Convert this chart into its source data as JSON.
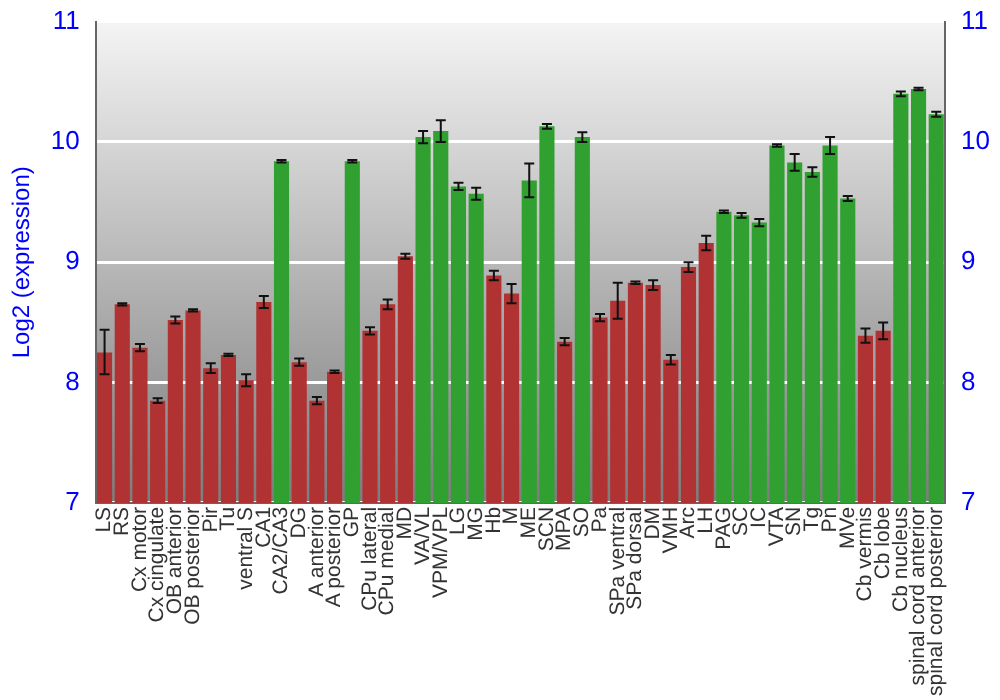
{
  "chart_data": {
    "type": "bar",
    "ylabel": "Log2 (expression)",
    "categories": [
      "LS",
      "RS",
      "Cx motor",
      "Cx cingulate",
      "OB anterior",
      "OB posterior",
      "Pir",
      "Tu",
      "ventral S",
      "CA1",
      "CA2/CA3",
      "DG",
      "A anterior",
      "A posterior",
      "GP",
      "CPu lateral",
      "CPu medial",
      "MD",
      "VA/VL",
      "VPM/VPL",
      "LG",
      "MG",
      "Hb",
      "M",
      "ME",
      "SCN",
      "MPA",
      "SO",
      "Pa",
      "SPa ventral",
      "SPa dorsal",
      "DM",
      "VMH",
      "Arc",
      "LH",
      "PAG",
      "SC",
      "IC",
      "VTA",
      "SN",
      "Tg",
      "Pn",
      "MVe",
      "Cb vermis",
      "Cb lobe",
      "Cb nucleus",
      "spinal cord anterior",
      "spinal cord posterior"
    ],
    "values": [
      8.25,
      8.65,
      8.29,
      7.85,
      8.52,
      8.6,
      8.12,
      8.23,
      8.02,
      8.67,
      9.84,
      8.17,
      7.85,
      8.09,
      9.84,
      8.43,
      8.65,
      9.05,
      10.04,
      10.09,
      9.63,
      9.57,
      8.89,
      8.74,
      9.68,
      10.13,
      8.34,
      10.04,
      8.54,
      8.68,
      8.83,
      8.81,
      8.19,
      8.96,
      9.16,
      9.42,
      9.39,
      9.33,
      9.97,
      9.83,
      9.75,
      9.97,
      9.53,
      8.39,
      8.43,
      10.4,
      10.44,
      10.23
    ],
    "errors": [
      [
        8.07,
        8.44
      ],
      0.01,
      0.03,
      0.02,
      0.03,
      0.01,
      0.04,
      0.01,
      0.05,
      0.05,
      0.01,
      0.03,
      0.03,
      0.01,
      0.01,
      0.03,
      0.04,
      0.02,
      0.05,
      0.09,
      0.03,
      0.05,
      0.04,
      0.08,
      0.14,
      0.02,
      0.03,
      0.04,
      0.03,
      0.15,
      0.01,
      0.04,
      0.04,
      0.04,
      0.06,
      0.01,
      0.02,
      0.03,
      0.01,
      0.07,
      0.04,
      0.07,
      0.02,
      0.06,
      0.07,
      0.02,
      0.01,
      0.02
    ],
    "colors": [
      "#b03232",
      "#b03232",
      "#b03232",
      "#b03232",
      "#b03232",
      "#b03232",
      "#b03232",
      "#b03232",
      "#b03232",
      "#b03232",
      "#30a030",
      "#b03232",
      "#b03232",
      "#b03232",
      "#30a030",
      "#b03232",
      "#b03232",
      "#b03232",
      "#30a030",
      "#30a030",
      "#30a030",
      "#30a030",
      "#b03232",
      "#b03232",
      "#30a030",
      "#30a030",
      "#b03232",
      "#30a030",
      "#b03232",
      "#b03232",
      "#b03232",
      "#b03232",
      "#b03232",
      "#b03232",
      "#b03232",
      "#30a030",
      "#30a030",
      "#30a030",
      "#30a030",
      "#30a030",
      "#30a030",
      "#30a030",
      "#30a030",
      "#b03232",
      "#b03232",
      "#30a030",
      "#30a030",
      "#30a030"
    ],
    "ylim": [
      7,
      11
    ],
    "yticks": [
      7,
      8,
      9,
      10,
      11
    ],
    "y2lim": [
      7,
      11
    ],
    "y2ticks": [
      7,
      8,
      9,
      10,
      11
    ],
    "grid": "y",
    "legend": false
  }
}
